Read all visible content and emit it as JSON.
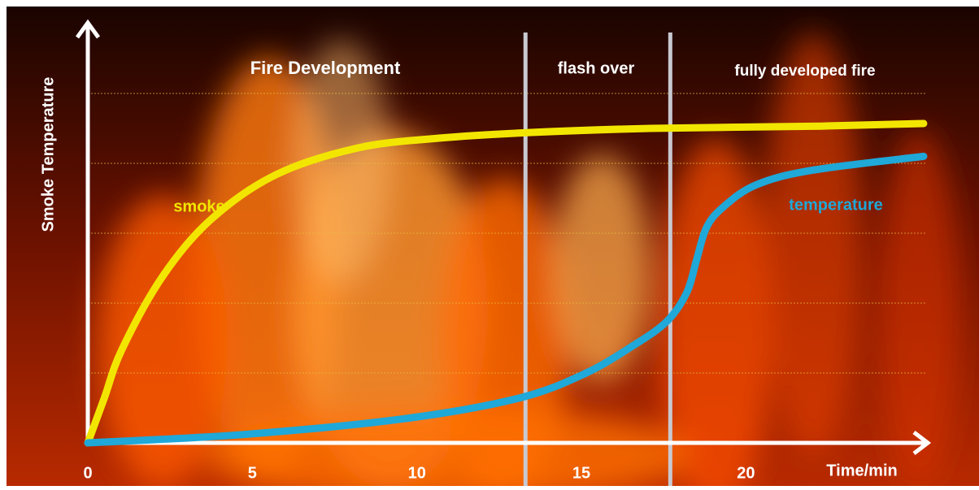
{
  "chart_data": {
    "type": "line",
    "x_label": "Time/min",
    "y_label": "Smoke Temperature",
    "phases": [
      "Fire Development",
      "flash over",
      "fully developed fire"
    ],
    "phase_boundaries": [
      13.3,
      17.7
    ],
    "xlim": [
      0,
      25.5
    ],
    "xticks": [
      0,
      5,
      10,
      15,
      20
    ],
    "ylim": [
      0,
      6
    ],
    "ygrid": [
      1,
      2,
      3,
      4,
      5
    ],
    "series": [
      {
        "name": "smoke",
        "color": "#f2e600",
        "x": [
          0,
          0.5,
          1.04,
          2.27,
          3.75,
          5.73,
          8.2,
          10.67,
          13.4,
          17.1,
          22,
          25.4
        ],
        "values": [
          0,
          0.64,
          1.34,
          2.38,
          3.2,
          3.84,
          4.22,
          4.36,
          4.44,
          4.5,
          4.53,
          4.57
        ]
      },
      {
        "name": "temperature",
        "color": "#1fa8d8",
        "x": [
          0,
          4.74,
          9.68,
          13.1,
          15.1,
          16.6,
          17.6,
          18.2,
          18.5,
          18.8,
          19.3,
          20.3,
          22,
          25.4
        ],
        "values": [
          0,
          0.12,
          0.35,
          0.64,
          0.99,
          1.4,
          1.74,
          2.15,
          2.62,
          3.08,
          3.37,
          3.69,
          3.9,
          4.1
        ]
      }
    ]
  }
}
